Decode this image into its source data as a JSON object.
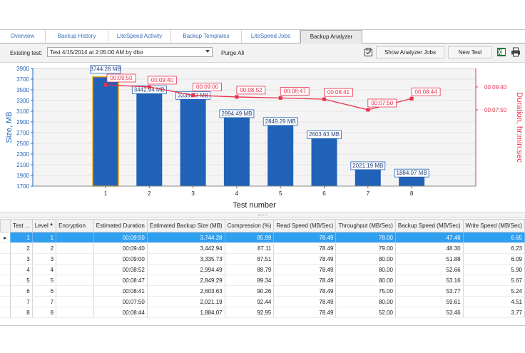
{
  "tabs": [
    {
      "label": "Overview",
      "active": false
    },
    {
      "label": "Backup History",
      "active": false
    },
    {
      "label": "LiteSpeed Activity",
      "active": false
    },
    {
      "label": "Backup Templates",
      "active": false
    },
    {
      "label": "LiteSpeed Jobs",
      "active": false
    },
    {
      "label": "Backup Analyzer",
      "active": true
    }
  ],
  "toolbar": {
    "existing_test_label": "Existing test:",
    "existing_test_value": "Test 4/15/2014 at 2:05:00 AM by dbo",
    "purge_all_label": "Purge All",
    "show_jobs_label": "Show Analyzer Jobs",
    "new_test_label": "New Test",
    "icons": [
      "jobs-checklist-icon",
      "excel-export-icon",
      "print-icon"
    ]
  },
  "chart_data": {
    "type": "bar",
    "xlabel": "Test number",
    "ylabel": "Size, MB",
    "y2label": "Duration, hr:min:sec",
    "categories": [
      "1",
      "2",
      "3",
      "4",
      "5",
      "6",
      "7",
      "8"
    ],
    "ylim": [
      1700,
      3900
    ],
    "yticks": [
      "3900",
      "3700",
      "3500",
      "3300",
      "3100",
      "2900",
      "2700",
      "2500",
      "2300",
      "2100",
      "1900",
      "1700"
    ],
    "y2ticks": [
      "00:09:40",
      "00:07:50"
    ],
    "bar_color": "#1f62b8",
    "line_color": "#e8304a",
    "highlight_color": "#f2a91a",
    "series": [
      {
        "type": "bar",
        "values": [
          3744.28,
          3442.94,
          3335.73,
          2994.49,
          2849.29,
          2603.63,
          2021.19,
          1884.07
        ],
        "labels": [
          "3744.28 MB",
          "3442.94 MB",
          "3335.73 MB",
          "2994.49 MB",
          "2849.29 MB",
          "2603.63 MB",
          "2021.19 MB",
          "1884.07 MB"
        ]
      },
      {
        "type": "line",
        "values": [
          "00:09:50",
          "00:09:40",
          "00:09:00",
          "00:08:52",
          "00:08:47",
          "00:08:41",
          "00:07:50",
          "00:08:44"
        ],
        "seconds": [
          590,
          580,
          540,
          532,
          527,
          521,
          470,
          524
        ]
      }
    ]
  },
  "table": {
    "columns": [
      "Test ...",
      "Level",
      "Encryption",
      "Estimated Duration",
      "Estimated Backup Size (MB)",
      "Compression (%)",
      "Read Speed (MB/Sec)",
      "Throughput (MB/Sec)",
      "Backup Speed (MB/Sec)",
      "Write Speed (MB/Sec)"
    ],
    "rows": [
      [
        "1",
        "1",
        "",
        "00:09:50",
        "3,744.28",
        "85.99",
        "78.49",
        "78.00",
        "47.48",
        "6.65"
      ],
      [
        "2",
        "2",
        "",
        "00:09:40",
        "3,442.94",
        "87.11",
        "78.49",
        "79.00",
        "48.30",
        "6.23"
      ],
      [
        "3",
        "3",
        "",
        "00:09:00",
        "3,335.73",
        "87.51",
        "78.49",
        "80.00",
        "51.88",
        "6.09"
      ],
      [
        "4",
        "4",
        "",
        "00:08:52",
        "2,994.49",
        "88.79",
        "78.49",
        "80.00",
        "52.66",
        "5.90"
      ],
      [
        "5",
        "5",
        "",
        "00:08:47",
        "2,849.29",
        "89.34",
        "78.49",
        "80.00",
        "53.16",
        "5.67"
      ],
      [
        "6",
        "6",
        "",
        "00:08:41",
        "2,603.63",
        "90.26",
        "78.49",
        "75.00",
        "53.77",
        "5.24"
      ],
      [
        "7",
        "7",
        "",
        "00:07:50",
        "2,021.19",
        "92.44",
        "78.49",
        "80.00",
        "59.61",
        "4.51"
      ],
      [
        "8",
        "8",
        "",
        "00:08:44",
        "1,884.07",
        "92.95",
        "78.49",
        "52.00",
        "53.46",
        "3.77"
      ]
    ]
  }
}
